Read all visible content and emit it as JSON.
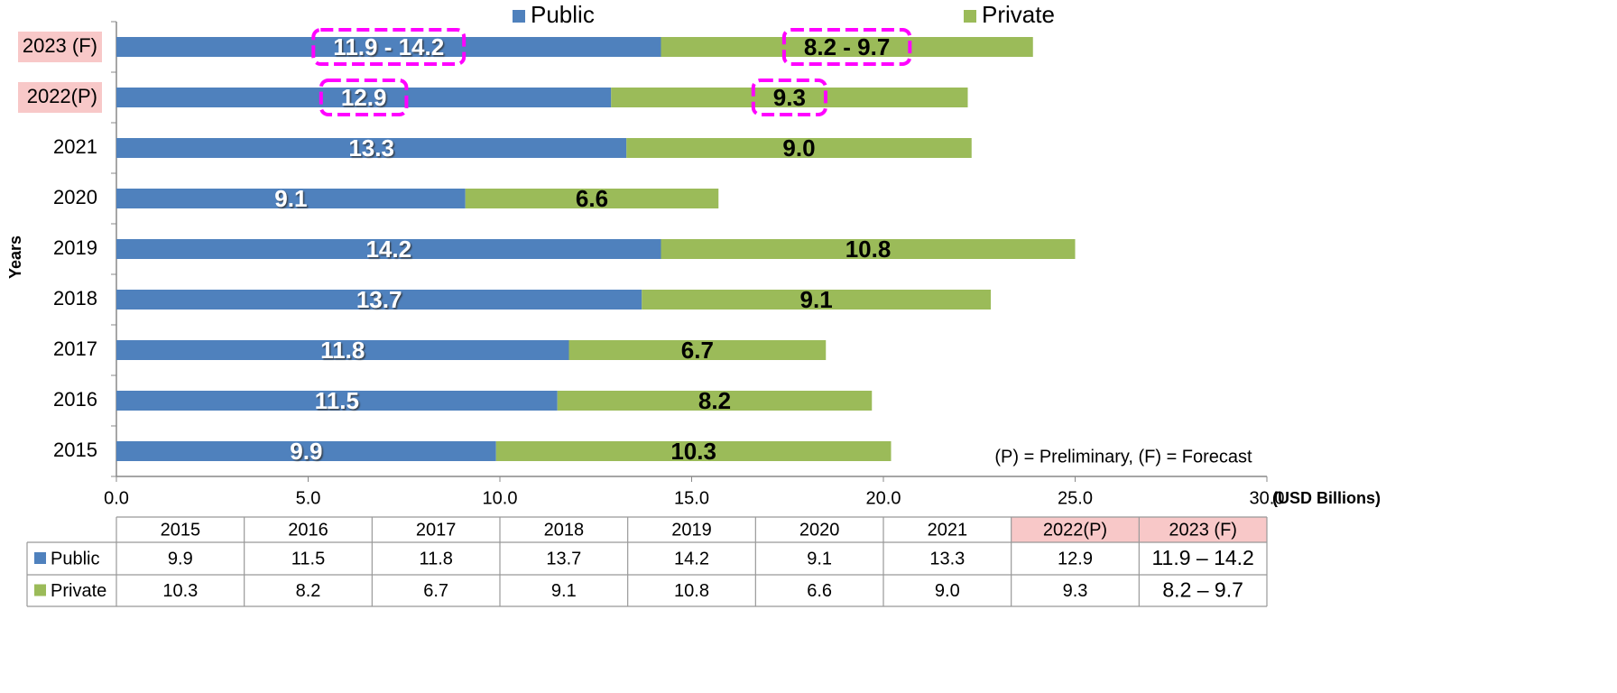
{
  "chart_data": {
    "type": "stacked_barh",
    "y_label": "Years",
    "x_label": "(USD Billions)",
    "annotation": "(P) = Preliminary, (F) = Forecast",
    "categories": [
      "2015",
      "2016",
      "2017",
      "2018",
      "2019",
      "2020",
      "2021",
      "2022(P)",
      "2023 (F)"
    ],
    "series": [
      {
        "name": "Public",
        "color": "#4f81bd",
        "values": [
          9.9,
          11.5,
          11.8,
          13.7,
          14.2,
          9.1,
          13.3,
          12.9,
          14.2
        ],
        "value_labels": [
          "9.9",
          "11.5",
          "11.8",
          "13.7",
          "14.2",
          "9.1",
          "13.3",
          "12.9",
          "11.9 - 14.2"
        ]
      },
      {
        "name": "Private",
        "color": "#9bbb59",
        "values": [
          10.3,
          8.2,
          6.7,
          9.1,
          10.8,
          6.6,
          9.0,
          9.3,
          9.7
        ],
        "value_labels": [
          "10.3",
          "8.2",
          "6.7",
          "9.1",
          "10.8",
          "6.6",
          "9.0",
          "9.3",
          "8.2 - 9.7"
        ]
      }
    ],
    "xlim": [
      0,
      30
    ],
    "xticks": [
      {
        "value": 0,
        "label": "0.0"
      },
      {
        "value": 5,
        "label": "5.0"
      },
      {
        "value": 10,
        "label": "10.0"
      },
      {
        "value": 15,
        "label": "15.0"
      },
      {
        "value": 20,
        "label": "20.0"
      },
      {
        "value": 25,
        "label": "25.0"
      },
      {
        "value": 30,
        "label": "30.0"
      }
    ],
    "legend": "top",
    "grid": false
  },
  "table": {
    "rows": [
      [
        "9.9",
        "11.5",
        "11.8",
        "13.7",
        "14.2",
        "9.1",
        "13.3",
        "12.9",
        "11.9 – 14.2"
      ],
      [
        "10.3",
        "8.2",
        "6.7",
        "9.1",
        "10.8",
        "6.6",
        "9.0",
        "9.3",
        "8.2 – 9.7"
      ]
    ]
  }
}
